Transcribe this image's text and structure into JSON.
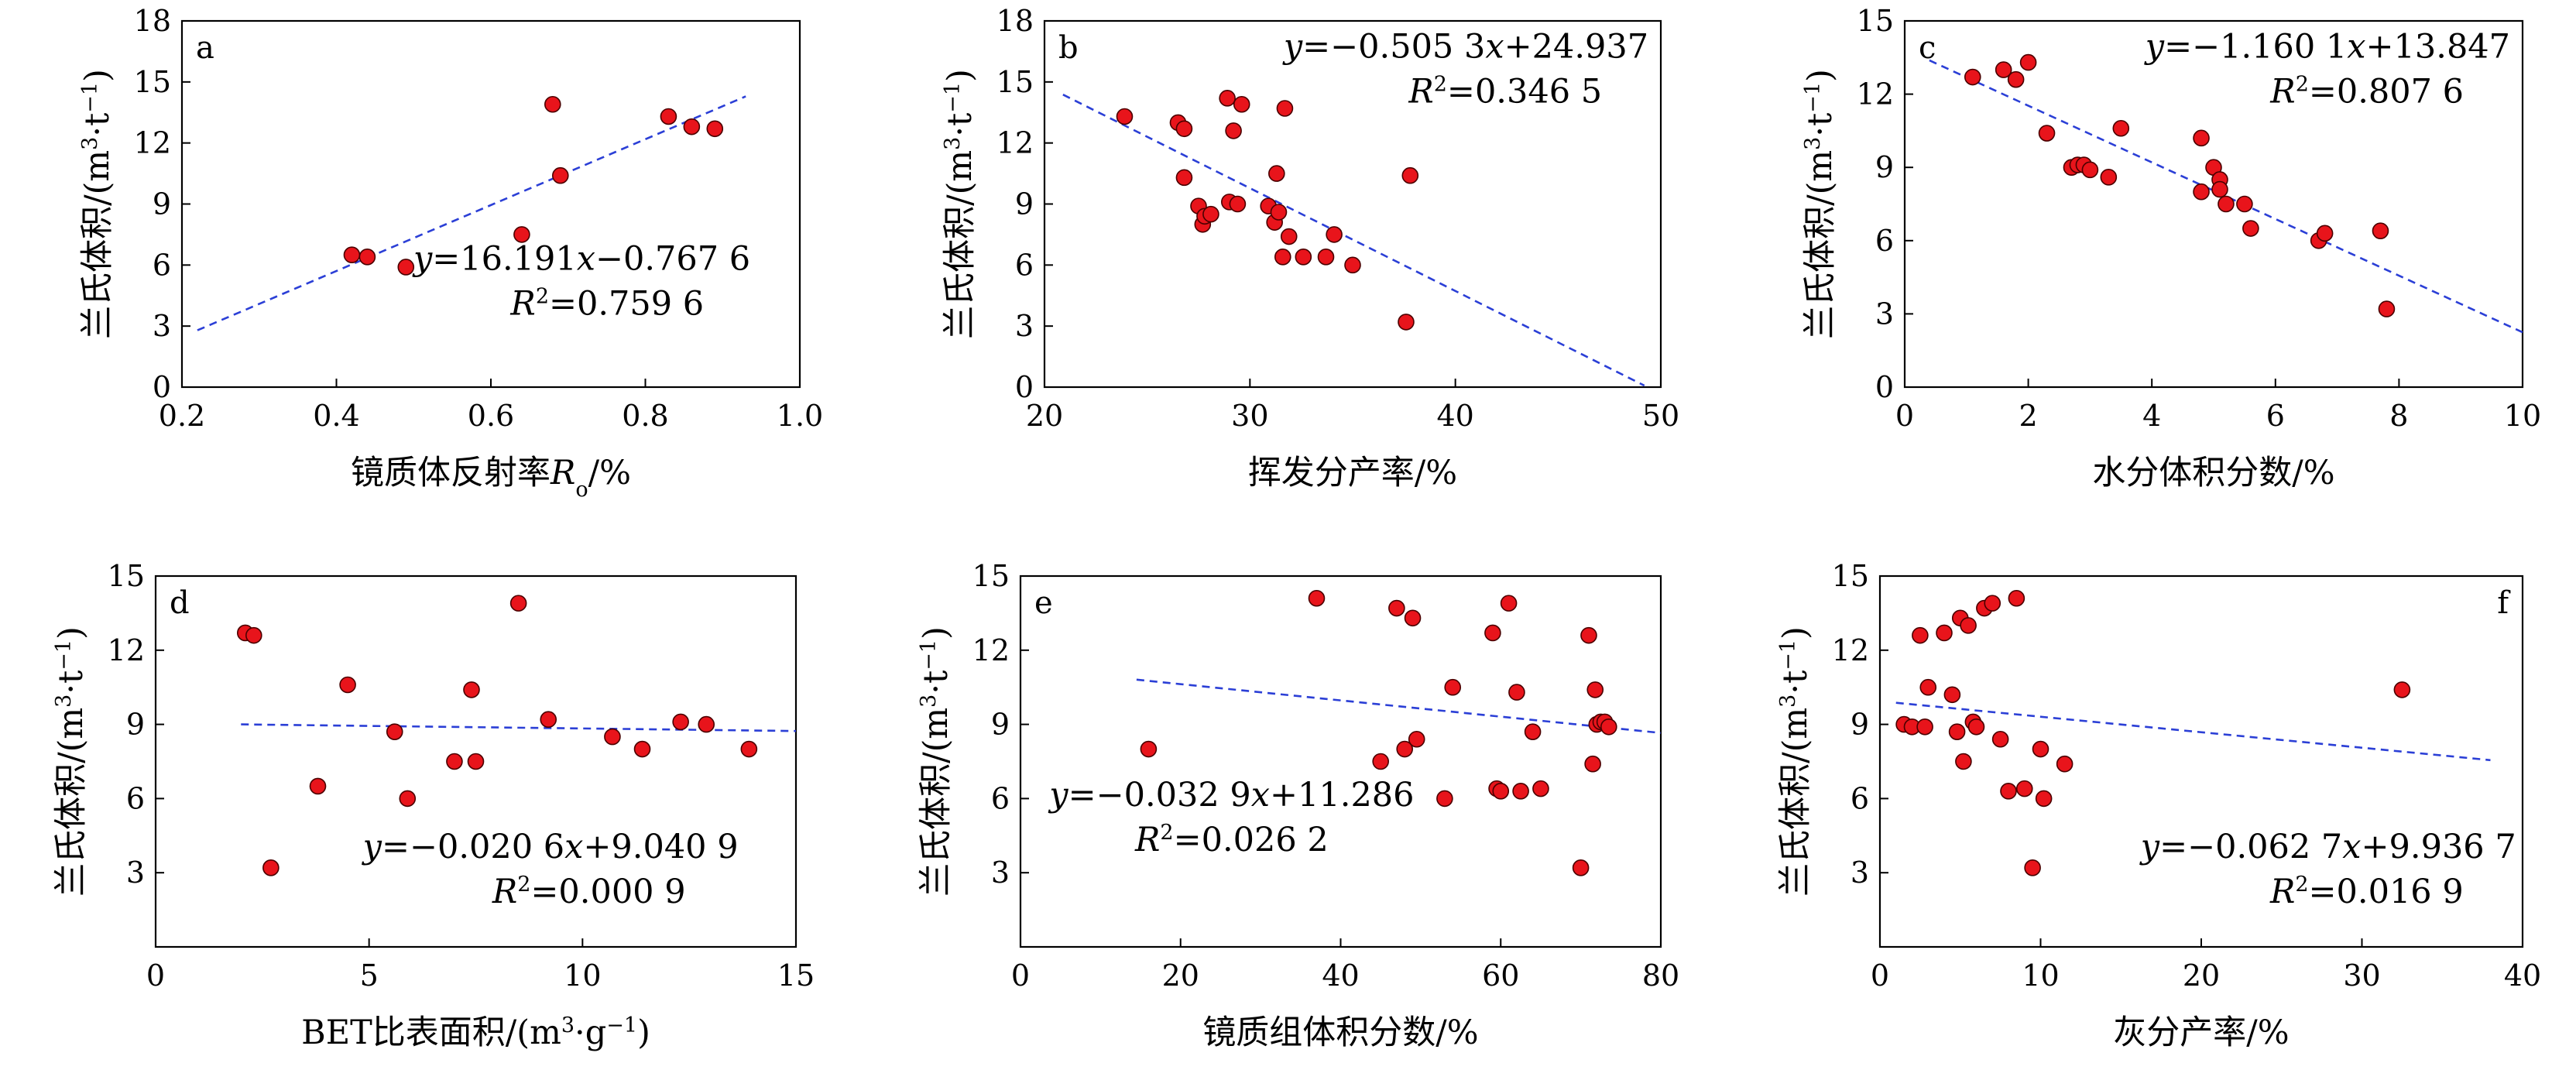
{
  "chart_data": [
    {
      "type": "scatter",
      "panel": "a",
      "xlabel_parts": [
        {
          "t": "镜质体反射率"
        },
        {
          "t": "R",
          "i": true
        },
        {
          "t": "o",
          "sub": true
        },
        {
          "t": "/%"
        }
      ],
      "ylabel_parts": [
        {
          "t": "兰氏体积/(m"
        },
        {
          "t": "3",
          "sup": true
        },
        {
          "t": "·t"
        },
        {
          "t": "−1",
          "sup": true
        },
        {
          "t": ")"
        }
      ],
      "xlim": [
        0.2,
        1.0
      ],
      "xticks": [
        0.2,
        0.4,
        0.6,
        0.8,
        1.0
      ],
      "xtick_labels": [
        "0.2",
        "0.4",
        "0.6",
        "0.8",
        "1.0"
      ],
      "ylim": [
        0,
        18
      ],
      "yticks": [
        0,
        3,
        6,
        9,
        12,
        15,
        18
      ],
      "ytick_labels": [
        "0",
        "3",
        "6",
        "9",
        "12",
        "15",
        "18"
      ],
      "x": [
        0.42,
        0.44,
        0.49,
        0.64,
        0.68,
        0.69,
        0.83,
        0.86,
        0.89
      ],
      "y": [
        6.5,
        6.4,
        5.9,
        7.5,
        13.9,
        10.4,
        13.3,
        12.8,
        12.7
      ],
      "fit": {
        "slope": 16.191,
        "intercept": -0.7676,
        "x_range": [
          0.22,
          0.93
        ]
      },
      "equation_parts": [
        {
          "t": "y",
          "i": true
        },
        {
          "t": "=16.191"
        },
        {
          "t": "x",
          "i": true
        },
        {
          "t": "−0.767 6"
        }
      ],
      "r2_parts": [
        {
          "t": "R",
          "i": true
        },
        {
          "t": "2",
          "sup": true
        },
        {
          "t": "=0.759 6"
        }
      ]
    },
    {
      "type": "scatter",
      "panel": "b",
      "xlabel_parts": [
        {
          "t": "挥发分产率/%"
        }
      ],
      "ylabel_parts": [
        {
          "t": "兰氏体积/(m"
        },
        {
          "t": "3",
          "sup": true
        },
        {
          "t": "·t"
        },
        {
          "t": "−1",
          "sup": true
        },
        {
          "t": ")"
        }
      ],
      "xlim": [
        20,
        50
      ],
      "xticks": [
        20,
        30,
        40,
        50
      ],
      "xtick_labels": [
        "20",
        "30",
        "40",
        "50"
      ],
      "ylim": [
        0,
        18
      ],
      "yticks": [
        0,
        3,
        6,
        9,
        12,
        15,
        18
      ],
      "ytick_labels": [
        "0",
        "3",
        "6",
        "9",
        "12",
        "15",
        "18"
      ],
      "x": [
        23.9,
        26.5,
        26.8,
        26.8,
        27.5,
        27.7,
        27.8,
        28.1,
        28.9,
        29.0,
        29.2,
        29.4,
        29.6,
        30.9,
        31.2,
        31.3,
        31.4,
        31.6,
        31.7,
        31.9,
        32.6,
        33.7,
        34.1,
        35.0,
        37.6,
        37.8
      ],
      "y": [
        13.3,
        13.0,
        12.7,
        10.3,
        8.9,
        8.0,
        8.4,
        8.5,
        14.2,
        9.1,
        12.6,
        9.0,
        13.9,
        8.9,
        8.1,
        10.5,
        8.6,
        6.4,
        13.7,
        7.4,
        6.4,
        6.4,
        7.5,
        6.0,
        3.2,
        10.4
      ],
      "fit": {
        "slope": -0.5053,
        "intercept": 24.937,
        "x_range": [
          20.9,
          49.2
        ]
      },
      "equation_parts": [
        {
          "t": "y",
          "i": true
        },
        {
          "t": "=−0.505 3"
        },
        {
          "t": "x",
          "i": true
        },
        {
          "t": "+24.937"
        }
      ],
      "r2_parts": [
        {
          "t": "R",
          "i": true
        },
        {
          "t": "2",
          "sup": true
        },
        {
          "t": "=0.346 5"
        }
      ]
    },
    {
      "type": "scatter",
      "panel": "c",
      "xlabel_parts": [
        {
          "t": "水分体积分数/%"
        }
      ],
      "ylabel_parts": [
        {
          "t": "兰氏体积/(m"
        },
        {
          "t": "3",
          "sup": true
        },
        {
          "t": "·t"
        },
        {
          "t": "−1",
          "sup": true
        },
        {
          "t": ")"
        }
      ],
      "xlim": [
        0,
        10
      ],
      "xticks": [
        0,
        2,
        4,
        6,
        8,
        10
      ],
      "xtick_labels": [
        "0",
        "2",
        "4",
        "6",
        "8",
        "10"
      ],
      "ylim": [
        0,
        15
      ],
      "yticks": [
        0,
        3,
        6,
        9,
        12,
        15
      ],
      "ytick_labels": [
        "0",
        "3",
        "6",
        "9",
        "12",
        "15"
      ],
      "x": [
        1.1,
        1.6,
        1.8,
        2.0,
        2.3,
        2.7,
        2.8,
        2.9,
        3.0,
        3.3,
        3.5,
        4.8,
        4.8,
        5.0,
        5.1,
        5.1,
        5.2,
        5.5,
        5.6,
        6.7,
        6.8,
        7.7,
        7.8
      ],
      "y": [
        12.7,
        13.0,
        12.6,
        13.3,
        10.4,
        9.0,
        9.1,
        9.1,
        8.9,
        8.6,
        10.6,
        10.2,
        8.0,
        9.0,
        8.5,
        8.1,
        7.5,
        7.5,
        6.5,
        6.0,
        6.3,
        6.4,
        3.2
      ],
      "fit": {
        "slope": -1.1601,
        "intercept": 13.847,
        "x_range": [
          0.4,
          10.0
        ]
      },
      "equation_parts": [
        {
          "t": "y",
          "i": true
        },
        {
          "t": "=−1.160 1"
        },
        {
          "t": "x",
          "i": true
        },
        {
          "t": "+13.847"
        }
      ],
      "r2_parts": [
        {
          "t": "R",
          "i": true
        },
        {
          "t": "2",
          "sup": true
        },
        {
          "t": "=0.807 6"
        }
      ]
    },
    {
      "type": "scatter",
      "panel": "d",
      "xlabel_parts": [
        {
          "t": "BET比表面积/(m"
        },
        {
          "t": "3",
          "sup": true
        },
        {
          "t": "·g"
        },
        {
          "t": "−1",
          "sup": true
        },
        {
          "t": ")"
        }
      ],
      "ylabel_parts": [
        {
          "t": "兰氏体积/(m"
        },
        {
          "t": "3",
          "sup": true
        },
        {
          "t": "·t"
        },
        {
          "t": "−1",
          "sup": true
        },
        {
          "t": ")"
        }
      ],
      "xlim": [
        0,
        15
      ],
      "xticks": [
        0,
        5,
        10,
        15
      ],
      "xtick_labels": [
        "0",
        "5",
        "10",
        "15"
      ],
      "ylim": [
        0,
        15
      ],
      "yticks": [
        3,
        6,
        9,
        12,
        15
      ],
      "ytick_labels": [
        "3",
        "6",
        "9",
        "12",
        "15"
      ],
      "x": [
        2.1,
        2.3,
        2.7,
        3.8,
        4.5,
        5.6,
        5.9,
        7.0,
        7.4,
        7.5,
        8.5,
        9.2,
        10.7,
        11.4,
        12.3,
        12.9,
        13.9
      ],
      "y": [
        12.7,
        12.6,
        3.2,
        6.5,
        10.6,
        8.7,
        6.0,
        7.5,
        10.4,
        7.5,
        13.9,
        9.2,
        8.5,
        8.0,
        9.1,
        9.0,
        8.0
      ],
      "fit": {
        "slope": -0.0206,
        "intercept": 9.0409,
        "x_range": [
          2.0,
          15.0
        ]
      },
      "equation_parts": [
        {
          "t": "y",
          "i": true
        },
        {
          "t": "=−0.020 6"
        },
        {
          "t": "x",
          "i": true
        },
        {
          "t": "+9.040 9"
        }
      ],
      "r2_parts": [
        {
          "t": "R",
          "i": true
        },
        {
          "t": "2",
          "sup": true
        },
        {
          "t": "=0.000 9"
        }
      ]
    },
    {
      "type": "scatter",
      "panel": "e",
      "xlabel_parts": [
        {
          "t": "镜质组体积分数/%"
        }
      ],
      "ylabel_parts": [
        {
          "t": "兰氏体积/(m"
        },
        {
          "t": "3",
          "sup": true
        },
        {
          "t": "·t"
        },
        {
          "t": "−1",
          "sup": true
        },
        {
          "t": ")"
        }
      ],
      "xlim": [
        0,
        80
      ],
      "xticks": [
        0,
        20,
        40,
        60,
        80
      ],
      "xtick_labels": [
        "0",
        "20",
        "40",
        "60",
        "80"
      ],
      "ylim": [
        0,
        15
      ],
      "yticks": [
        3,
        6,
        9,
        12,
        15
      ],
      "ytick_labels": [
        "3",
        "6",
        "9",
        "12",
        "15"
      ],
      "x": [
        16.0,
        37.0,
        45.0,
        47.0,
        48.0,
        49.0,
        49.5,
        53.0,
        54.0,
        59.0,
        59.5,
        60.0,
        61.0,
        62.0,
        62.5,
        64.0,
        65.0,
        70.0,
        71.0,
        71.5,
        71.8,
        72.0,
        72.5,
        73.0,
        73.5
      ],
      "y": [
        8.0,
        14.1,
        7.5,
        13.7,
        8.0,
        13.3,
        8.4,
        6.0,
        10.5,
        12.7,
        6.4,
        6.3,
        13.9,
        10.3,
        6.3,
        8.7,
        6.4,
        3.2,
        12.6,
        7.4,
        10.4,
        9.0,
        9.1,
        9.1,
        8.9
      ],
      "fit": {
        "slope": -0.0329,
        "intercept": 11.286,
        "x_range": [
          14.5,
          80.0
        ]
      },
      "equation_parts": [
        {
          "t": "y",
          "i": true
        },
        {
          "t": "=−0.032 9"
        },
        {
          "t": "x",
          "i": true
        },
        {
          "t": "+11.286"
        }
      ],
      "r2_parts": [
        {
          "t": "R",
          "i": true
        },
        {
          "t": "2",
          "sup": true
        },
        {
          "t": "=0.026 2"
        }
      ]
    },
    {
      "type": "scatter",
      "panel": "f",
      "xlabel_parts": [
        {
          "t": "灰分产率/%"
        }
      ],
      "ylabel_parts": [
        {
          "t": "兰氏体积/(m"
        },
        {
          "t": "3",
          "sup": true
        },
        {
          "t": "·t"
        },
        {
          "t": "−1",
          "sup": true
        },
        {
          "t": ")"
        }
      ],
      "xlim": [
        0,
        40
      ],
      "xticks": [
        0,
        10,
        20,
        30,
        40
      ],
      "xtick_labels": [
        "0",
        "10",
        "20",
        "30",
        "40"
      ],
      "ylim": [
        0,
        15
      ],
      "yticks": [
        3,
        6,
        9,
        12,
        15
      ],
      "ytick_labels": [
        "3",
        "6",
        "9",
        "12",
        "15"
      ],
      "x": [
        1.5,
        2.0,
        2.5,
        2.8,
        3.0,
        4.0,
        4.5,
        4.8,
        5.0,
        5.2,
        5.5,
        5.8,
        6.0,
        6.5,
        7.0,
        7.5,
        8.0,
        8.5,
        9.0,
        9.5,
        10.0,
        10.2,
        11.5,
        32.5
      ],
      "y": [
        9.0,
        8.9,
        12.6,
        8.9,
        10.5,
        12.7,
        10.2,
        8.7,
        13.3,
        7.5,
        13.0,
        9.1,
        8.9,
        13.7,
        13.9,
        8.4,
        6.3,
        14.1,
        6.4,
        3.2,
        8.0,
        6.0,
        7.4,
        10.4
      ],
      "fit": {
        "slope": -0.0627,
        "intercept": 9.9367,
        "x_range": [
          1.0,
          38.0
        ]
      },
      "equation_parts": [
        {
          "t": "y",
          "i": true
        },
        {
          "t": "=−0.062 7"
        },
        {
          "t": "x",
          "i": true
        },
        {
          "t": "+9.936 7"
        }
      ],
      "r2_parts": [
        {
          "t": "R",
          "i": true
        },
        {
          "t": "2",
          "sup": true
        },
        {
          "t": "=0.016 9"
        }
      ]
    }
  ],
  "style": {
    "point_fill": "#e8141b",
    "point_stroke": "#4a0000",
    "fit_color": "#2b3fd6",
    "axis_color": "#000000"
  }
}
